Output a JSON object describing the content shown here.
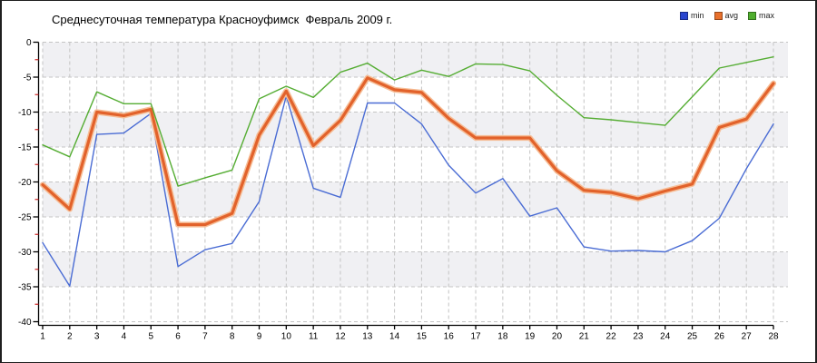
{
  "chart_data": {
    "type": "line",
    "title": "Среднесуточная температура Красноуфимск  Февраль 2009 г.",
    "xlabel": "",
    "ylabel": "",
    "ylim": [
      -40,
      0
    ],
    "ytick_step": 5,
    "yticks": [
      0,
      -5,
      -10,
      -15,
      -20,
      -25,
      -30,
      -35,
      -40
    ],
    "xticks": [
      1,
      2,
      3,
      4,
      5,
      6,
      7,
      8,
      9,
      10,
      11,
      12,
      13,
      14,
      15,
      16,
      17,
      18,
      19,
      20,
      21,
      22,
      23,
      24,
      25,
      26,
      27,
      28
    ],
    "grid": "dashed-both-axes",
    "band_fill": "alternating",
    "legend_position": "top-right",
    "categories": [
      1,
      2,
      3,
      4,
      5,
      6,
      7,
      8,
      9,
      10,
      11,
      12,
      13,
      14,
      15,
      16,
      17,
      18,
      19,
      20,
      21,
      22,
      23,
      24,
      25,
      26,
      27,
      28
    ],
    "series": [
      {
        "name": "min",
        "color": "#4a6cd4",
        "width": 1.4,
        "values": [
          -28.7,
          -34.9,
          -13.2,
          -13.0,
          -10.2,
          -32.1,
          -29.7,
          -28.8,
          -22.8,
          -7.7,
          -20.9,
          -22.2,
          -8.7,
          -8.7,
          -11.7,
          -17.6,
          -21.6,
          -19.5,
          -24.9,
          -23.7,
          -29.3,
          -29.9,
          -29.8,
          -30.0,
          -28.4,
          -25.2,
          -18.1,
          -11.7
        ]
      },
      {
        "name": "avg",
        "color": "#e2622b",
        "halo_color": "#f6bd96",
        "width": 3.2,
        "values": [
          -20.4,
          -23.9,
          -10.0,
          -10.5,
          -9.6,
          -26.1,
          -26.1,
          -24.5,
          -13.3,
          -7.0,
          -14.8,
          -11.2,
          -5.1,
          -6.8,
          -7.2,
          -10.9,
          -13.7,
          -13.7,
          -13.7,
          -18.4,
          -21.2,
          -21.5,
          -22.4,
          -21.3,
          -20.3,
          -12.2,
          -11.0,
          -5.9
        ]
      },
      {
        "name": "max",
        "color": "#55ad33",
        "width": 1.4,
        "values": [
          -14.7,
          -16.4,
          -7.1,
          -8.8,
          -8.8,
          -20.6,
          -19.4,
          -18.3,
          -8.1,
          -6.3,
          -7.9,
          -4.3,
          -3.0,
          -5.4,
          -4.0,
          -4.9,
          -3.1,
          -3.2,
          -4.1,
          -7.6,
          -10.8,
          -11.1,
          -11.5,
          -11.9,
          -7.8,
          -3.7,
          -2.9,
          -2.1
        ]
      }
    ]
  },
  "legend": {
    "items": [
      {
        "label": "min",
        "color": "#2a46cf"
      },
      {
        "label": "avg",
        "color": "#e8702c"
      },
      {
        "label": "max",
        "color": "#4fae2d"
      }
    ]
  },
  "style": {
    "band_gray": "#f0f0f3",
    "band_white": "#ffffff",
    "grid_color": "#c4c4c4",
    "axis_color": "#000000",
    "minor_tick_color": "#cc2222",
    "label_color": "#000000"
  }
}
